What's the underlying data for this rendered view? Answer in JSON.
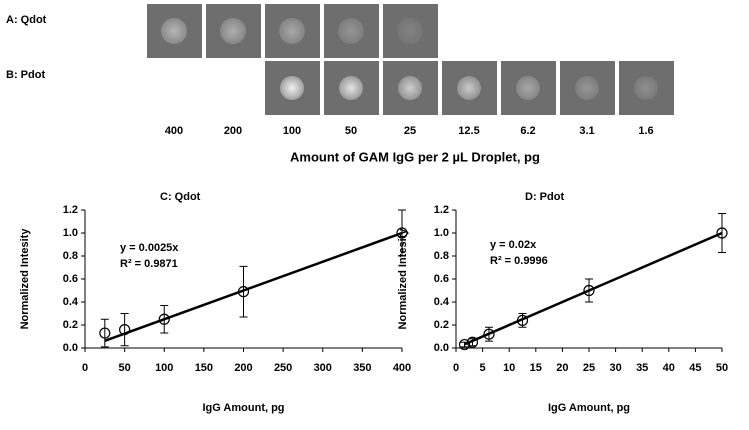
{
  "figure": {
    "row_labels": [
      "A:  Qdot",
      "B:  Pdot"
    ],
    "amounts": [
      "400",
      "200",
      "100",
      "50",
      "25",
      "12.5",
      "6.2",
      "3.1",
      "1.6"
    ],
    "amount_title": "Amount of GAM IgG per 2 µL Droplet, pg"
  },
  "chart_data": [
    {
      "type": "scatter",
      "title": "C: Qdot",
      "x_label": "IgG Amount, pg",
      "y_label": "Normalized Intesity",
      "x": [
        25,
        50,
        100,
        200,
        400
      ],
      "values": [
        0.13,
        0.16,
        0.25,
        0.49,
        1.0
      ],
      "errors": [
        0.12,
        0.14,
        0.12,
        0.22,
        0.2
      ],
      "xlim": [
        0,
        400
      ],
      "xticks": [
        0,
        50,
        100,
        150,
        200,
        250,
        300,
        350,
        400
      ],
      "ylim": [
        0,
        1.2
      ],
      "yticks": [
        {
          "value": 0,
          "label": "0.0"
        },
        0.2,
        0.4,
        0.6,
        0.8,
        {
          "value": 1,
          "label": "1.0"
        },
        1.2
      ],
      "fit": {
        "slope": 0.0025,
        "label": "y = 0.0025x",
        "r2_label": "R² = 0.9871"
      },
      "color": "#000000"
    },
    {
      "type": "scatter",
      "title": "D: Pdot",
      "x_label": "IgG Amount, pg",
      "y_label": "Normalized Intesity",
      "x": [
        1.6,
        3.1,
        6.2,
        12.5,
        25,
        50
      ],
      "values": [
        0.03,
        0.05,
        0.12,
        0.24,
        0.5,
        1.0
      ],
      "errors": [
        0.02,
        0.03,
        0.06,
        0.06,
        0.1,
        0.17
      ],
      "xlim": [
        0,
        50
      ],
      "xticks": [
        0,
        5,
        10,
        15,
        20,
        25,
        30,
        35,
        40,
        45,
        50
      ],
      "ylim": [
        0,
        1.2
      ],
      "yticks": [
        {
          "value": 0,
          "label": "0.0"
        },
        0.2,
        0.4,
        0.6,
        0.8,
        {
          "value": 1,
          "label": "1.0"
        },
        1.2
      ],
      "fit": {
        "slope": 0.02,
        "label": "y = 0.02x",
        "r2_label": "R² = 0.9996"
      },
      "color": "#000000"
    }
  ]
}
